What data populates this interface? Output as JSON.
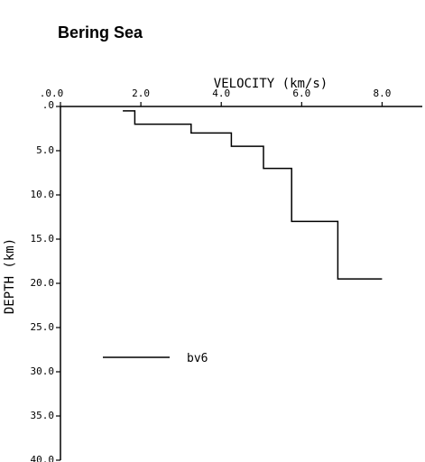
{
  "page": {
    "title": "Bering Sea"
  },
  "chart_data": {
    "type": "line",
    "title": "Bering Sea",
    "xlabel": "VELOCITY (km/s)",
    "ylabel": "DEPTH (km)",
    "x_axis_position": "top",
    "y_axis_inverted": true,
    "xlim": [
      0.0,
      9.0
    ],
    "ylim": [
      0.0,
      40.0
    ],
    "xticks": [
      0.0,
      2.0,
      4.0,
      6.0,
      8.0
    ],
    "xtick_labels": [
      ".0.0",
      "2.0",
      "4.0",
      "6.0",
      "8.0"
    ],
    "yticks": [
      0.0,
      5.0,
      10.0,
      15.0,
      20.0,
      25.0,
      30.0,
      35.0,
      40.0
    ],
    "ytick_labels": [
      ".0",
      "5.0",
      "10.0",
      "15.0",
      "20.0",
      "25.0",
      "30.0",
      "35.0",
      "40.0"
    ],
    "grid": false,
    "legend_position": "lower-left",
    "series": [
      {
        "name": "bv6",
        "color": "#000000",
        "step": true,
        "points": [
          {
            "velocity": 1.55,
            "depth": 0.5
          },
          {
            "velocity": 1.85,
            "depth": 0.5
          },
          {
            "velocity": 1.85,
            "depth": 2.0
          },
          {
            "velocity": 3.25,
            "depth": 2.0
          },
          {
            "velocity": 3.25,
            "depth": 3.0
          },
          {
            "velocity": 4.25,
            "depth": 3.0
          },
          {
            "velocity": 4.25,
            "depth": 4.5
          },
          {
            "velocity": 5.05,
            "depth": 4.5
          },
          {
            "velocity": 5.05,
            "depth": 7.0
          },
          {
            "velocity": 5.75,
            "depth": 7.0
          },
          {
            "velocity": 5.75,
            "depth": 13.0
          },
          {
            "velocity": 6.9,
            "depth": 13.0
          },
          {
            "velocity": 6.9,
            "depth": 19.5
          },
          {
            "velocity": 8.0,
            "depth": 19.5
          }
        ]
      }
    ]
  }
}
